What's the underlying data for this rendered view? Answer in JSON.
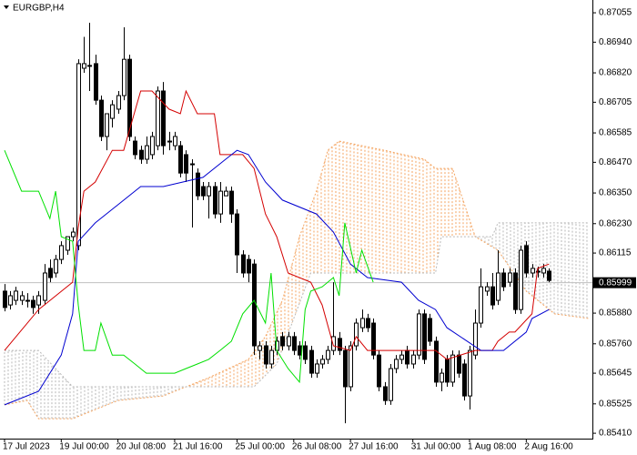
{
  "chart_data": {
    "type": "candlestick",
    "title": "EURGBP,H4",
    "xlim": [
      -0.8,
      103.5
    ],
    "ylim": [
      0.85389,
      0.87105
    ],
    "yticks": [
      0.87055,
      {
        "value": 0.8694,
        "label": "0.86940"
      },
      {
        "value": 0.8682,
        "label": "0.86820"
      },
      0.86705,
      0.86585,
      {
        "value": 0.8647,
        "label": "0.86470"
      },
      {
        "value": 0.8635,
        "label": "0.86350"
      },
      {
        "value": 0.8623,
        "label": "0.86230"
      },
      0.86115,
      {
        "value": 0.8588,
        "label": "0.85880"
      },
      {
        "value": 0.8576,
        "label": "0.85760"
      },
      0.85645,
      0.85525,
      {
        "value": 0.8541,
        "label": "0.85410"
      }
    ],
    "xticks": [
      {
        "value": 0,
        "label": "17 Jul 2023"
      },
      {
        "value": 10,
        "label": "19 Jul 00:00"
      },
      {
        "value": 20,
        "label": "20 Jul 08:00"
      },
      {
        "value": 30,
        "label": "21 Jul 16:00"
      },
      {
        "value": 41,
        "label": "25 Jul 00:00"
      },
      {
        "value": 51,
        "label": "26 Jul 08:00"
      },
      {
        "value": 61,
        "label": "27 Jul 16:00"
      },
      {
        "value": 72,
        "label": "31 Jul 00:00"
      },
      {
        "value": 82,
        "label": "1 Aug 08:00"
      },
      {
        "value": 92,
        "label": "2 Aug 16:00"
      }
    ],
    "current_price": 0.85999,
    "up_color": "#ffffff",
    "down_color": "#000000",
    "ohlc": [
      [
        0.85966,
        0.85994,
        0.85887,
        0.85902
      ],
      [
        0.85912,
        0.85966,
        0.85894,
        0.85948
      ],
      [
        0.8593,
        0.85983,
        0.85912,
        0.85966
      ],
      [
        0.8593,
        0.85966,
        0.85912,
        0.85948
      ],
      [
        0.8593,
        0.85958,
        0.85902,
        0.8593
      ],
      [
        0.8593,
        0.85948,
        0.85877,
        0.85902
      ],
      [
        0.85912,
        0.85966,
        0.85877,
        0.85948
      ],
      [
        0.8593,
        0.86072,
        0.85912,
        0.86037
      ],
      [
        0.86055,
        0.8609,
        0.86001,
        0.86019
      ],
      [
        0.86037,
        0.86108,
        0.86019,
        0.8609
      ],
      [
        0.8609,
        0.86161,
        0.86072,
        0.86144
      ],
      [
        0.86126,
        0.86179,
        0.86108,
        0.86179
      ],
      [
        0.86179,
        0.86215,
        0.86161,
        0.86197
      ],
      [
        0.86144,
        0.86873,
        0.86126,
        0.86856
      ],
      [
        0.86838,
        0.86961,
        0.8682,
        0.86856
      ],
      [
        0.86849,
        0.87016,
        0.86749,
        0.86849
      ],
      [
        0.86856,
        0.86891,
        0.86695,
        0.86713
      ],
      [
        0.86713,
        0.86731,
        0.86553,
        0.86571
      ],
      [
        0.86571,
        0.8666,
        0.86517,
        0.8666
      ],
      [
        0.86642,
        0.86713,
        0.86606,
        0.86695
      ],
      [
        0.86678,
        0.86749,
        0.8666,
        0.86731
      ],
      [
        0.86731,
        0.86998,
        0.86713,
        0.86873
      ],
      [
        0.86873,
        0.86891,
        0.86553,
        0.86571
      ],
      [
        0.86553,
        0.86571,
        0.86482,
        0.865
      ],
      [
        0.86517,
        0.86535,
        0.86464,
        0.86482
      ],
      [
        0.86482,
        0.86571,
        0.86464,
        0.86535
      ],
      [
        0.865,
        0.86589,
        0.86482,
        0.86571
      ],
      [
        0.86535,
        0.86767,
        0.86517,
        0.86749
      ],
      [
        0.86749,
        0.86784,
        0.865,
        0.86535
      ],
      [
        0.86553,
        0.86589,
        0.86517,
        0.86553
      ],
      [
        0.86535,
        0.86589,
        0.86517,
        0.86571
      ],
      [
        0.86535,
        0.86553,
        0.86411,
        0.86428
      ],
      [
        0.865,
        0.86517,
        0.86393,
        0.86428
      ],
      [
        0.86464,
        0.86482,
        0.86215,
        0.86464
      ],
      [
        0.86428,
        0.86446,
        0.86322,
        0.86339
      ],
      [
        0.86375,
        0.86393,
        0.86322,
        0.86339
      ],
      [
        0.86339,
        0.86393,
        0.8625,
        0.86375
      ],
      [
        0.86375,
        0.86393,
        0.8625,
        0.86268
      ],
      [
        0.86268,
        0.86393,
        0.86233,
        0.86357
      ],
      [
        0.86339,
        0.86375,
        0.86339,
        0.86357
      ],
      [
        0.86357,
        0.86375,
        0.86233,
        0.86268
      ],
      [
        0.86268,
        0.86286,
        0.86037,
        0.86108
      ],
      [
        0.86108,
        0.86126,
        0.86019,
        0.86037
      ],
      [
        0.8609,
        0.86108,
        0.86001,
        0.86037
      ],
      [
        0.86072,
        0.8609,
        0.85716,
        0.85752
      ],
      [
        0.85734,
        0.8577,
        0.85699,
        0.85752
      ],
      [
        0.85752,
        0.8577,
        0.85663,
        0.85681
      ],
      [
        0.85681,
        0.85752,
        0.85663,
        0.85734
      ],
      [
        0.85734,
        0.85788,
        0.85716,
        0.8577
      ],
      [
        0.85788,
        0.85806,
        0.85734,
        0.85752
      ],
      [
        0.85752,
        0.85806,
        0.85734,
        0.85788
      ],
      [
        0.85788,
        0.85806,
        0.85716,
        0.85734
      ],
      [
        0.85752,
        0.8577,
        0.85699,
        0.85716
      ],
      [
        0.85752,
        0.8577,
        0.85681,
        0.85699
      ],
      [
        0.85734,
        0.85752,
        0.85627,
        0.85645
      ],
      [
        0.85645,
        0.85699,
        0.85627,
        0.85681
      ],
      [
        0.85681,
        0.85716,
        0.85663,
        0.85699
      ],
      [
        0.85699,
        0.85752,
        0.85681,
        0.85734
      ],
      [
        0.85734,
        0.86001,
        0.85716,
        0.85788
      ],
      [
        0.85781,
        0.85806,
        0.85716,
        0.85734
      ],
      [
        0.85734,
        0.85752,
        0.85449,
        0.85592
      ],
      [
        0.85592,
        0.8577,
        0.85574,
        0.85752
      ],
      [
        0.85752,
        0.85859,
        0.85734,
        0.85841
      ],
      [
        0.85823,
        0.85894,
        0.85806,
        0.85859
      ],
      [
        0.85859,
        0.85877,
        0.85806,
        0.85823
      ],
      [
        0.85841,
        0.85859,
        0.85699,
        0.85716
      ],
      [
        0.85716,
        0.85734,
        0.85574,
        0.85592
      ],
      [
        0.85592,
        0.8561,
        0.85521,
        0.85538
      ],
      [
        0.85538,
        0.85681,
        0.85521,
        0.85663
      ],
      [
        0.85663,
        0.85716,
        0.85645,
        0.85699
      ],
      [
        0.85699,
        0.85734,
        0.85681,
        0.85716
      ],
      [
        0.85734,
        0.85752,
        0.85663,
        0.85681
      ],
      [
        0.85681,
        0.85734,
        0.85663,
        0.85716
      ],
      [
        0.85716,
        0.85894,
        0.85699,
        0.85877
      ],
      [
        0.85877,
        0.85894,
        0.85681,
        0.85699
      ],
      [
        0.85859,
        0.85877,
        0.85752,
        0.8577
      ],
      [
        0.8577,
        0.85788,
        0.85592,
        0.8561
      ],
      [
        0.8561,
        0.85663,
        0.85574,
        0.85645
      ],
      [
        0.85699,
        0.85716,
        0.85592,
        0.8561
      ],
      [
        0.8561,
        0.85734,
        0.85592,
        0.85716
      ],
      [
        0.85716,
        0.85734,
        0.85627,
        0.85645
      ],
      [
        0.85681,
        0.85699,
        0.85538,
        0.85556
      ],
      [
        0.85556,
        0.85752,
        0.85503,
        0.85734
      ],
      [
        0.85716,
        0.85894,
        0.85699,
        0.85841
      ],
      [
        0.85841,
        0.86055,
        0.85823,
        0.85983
      ],
      [
        0.85966,
        0.86001,
        0.85948,
        0.85983
      ],
      [
        0.85983,
        0.86037,
        0.85894,
        0.85912
      ],
      [
        0.8593,
        0.86126,
        0.85912,
        0.86037
      ],
      [
        0.86037,
        0.86055,
        0.85966,
        0.85983
      ],
      [
        0.86001,
        0.86055,
        0.85983,
        0.86037
      ],
      [
        0.86037,
        0.86055,
        0.85877,
        0.85894
      ],
      [
        0.85894,
        0.86144,
        0.85877,
        0.86126
      ],
      [
        0.86144,
        0.86161,
        0.86019,
        0.86037
      ],
      [
        0.86037,
        0.86072,
        0.86019,
        0.86055
      ],
      [
        0.86044,
        0.86062,
        0.86019,
        0.86044
      ],
      [
        0.86037,
        0.86072,
        0.86019,
        0.86055
      ],
      [
        0.86044,
        0.86055,
        0.86001,
        0.86008
      ]
    ],
    "lines": [
      {
        "color": "#d40000",
        "style": "solid",
        "x": [
          0,
          6,
          12,
          13,
          14,
          16,
          19,
          21,
          24,
          26,
          29,
          31,
          32,
          34,
          37,
          38,
          42,
          44,
          46,
          48,
          50,
          54,
          56,
          58,
          61,
          62,
          64,
          76,
          78,
          83,
          86,
          87,
          89,
          90,
          93,
          94,
          96
        ],
        "values": [
          0.85734,
          0.85894,
          0.86001,
          0.86215,
          0.86357,
          0.86393,
          0.86517,
          0.86517,
          0.86749,
          0.86749,
          0.86678,
          0.8666,
          0.86749,
          0.8666,
          0.8666,
          0.865,
          0.865,
          0.86446,
          0.86268,
          0.86179,
          0.86037,
          0.86001,
          0.85912,
          0.85752,
          0.85734,
          0.85788,
          0.85734,
          0.85734,
          0.85699,
          0.85734,
          0.85734,
          0.8577,
          0.85806,
          0.85806,
          0.85877,
          0.86055,
          0.86072
        ]
      },
      {
        "color": "#0000d0",
        "style": "solid",
        "x": [
          0,
          6,
          10,
          12,
          13,
          16,
          20,
          24,
          28,
          35,
          39,
          41,
          43,
          46,
          49,
          55,
          58,
          61,
          64,
          70,
          73,
          76,
          78,
          84,
          88,
          92,
          93,
          96
        ],
        "values": [
          0.85521,
          0.85574,
          0.85716,
          0.85877,
          0.86161,
          0.86233,
          0.86304,
          0.86375,
          0.86375,
          0.86411,
          0.86482,
          0.86517,
          0.865,
          0.86393,
          0.86322,
          0.86268,
          0.86197,
          0.86072,
          0.86019,
          0.86001,
          0.8593,
          0.85894,
          0.85823,
          0.85734,
          0.85734,
          0.85806,
          0.85859,
          0.85894
        ]
      },
      {
        "color": "#00e000",
        "style": "solid",
        "x": [
          0,
          3,
          6,
          8,
          9,
          10,
          12,
          13,
          14,
          16,
          17,
          19,
          21,
          23,
          25,
          30,
          32,
          34,
          36,
          38,
          40,
          42,
          44,
          46,
          47,
          48,
          50,
          52,
          53,
          54,
          56,
          58,
          59,
          60,
          62,
          63,
          65
        ],
        "values": [
          0.86517,
          0.86357,
          0.86357,
          0.8625,
          0.86357,
          0.86179,
          0.86161,
          0.85912,
          0.85734,
          0.85734,
          0.85841,
          0.85716,
          0.85716,
          0.85681,
          0.85645,
          0.85645,
          0.85663,
          0.85681,
          0.85699,
          0.85734,
          0.8577,
          0.85877,
          0.8593,
          0.85841,
          0.86037,
          0.85734,
          0.85663,
          0.8561,
          0.85894,
          0.85966,
          0.85983,
          0.86019,
          0.85948,
          0.86233,
          0.86037,
          0.86126,
          0.86001
        ]
      }
    ],
    "span_a": {
      "color": "#f4a460",
      "style": "dotted",
      "x": [
        0,
        4,
        6,
        12,
        20,
        28,
        36,
        43,
        46,
        49,
        52,
        55,
        57,
        59,
        67,
        74,
        76,
        79,
        83,
        87,
        92,
        97,
        103
      ],
      "values": [
        0.85521,
        0.85538,
        0.85467,
        0.85467,
        0.85538,
        0.85556,
        0.85627,
        0.85699,
        0.85788,
        0.8593,
        0.86179,
        0.86357,
        0.86517,
        0.86553,
        0.86517,
        0.86482,
        0.86446,
        0.86446,
        0.86179,
        0.86126,
        0.85966,
        0.85877,
        0.85859
      ]
    },
    "span_b": {
      "color": "#b8b8b8",
      "style": "dotted",
      "x": [
        0,
        6,
        12,
        44,
        48,
        54,
        76,
        77,
        86,
        87,
        103
      ],
      "values": [
        0.85734,
        0.85734,
        0.85592,
        0.85592,
        0.85681,
        0.86037,
        0.86037,
        0.86179,
        0.86179,
        0.86233,
        0.86233
      ]
    }
  }
}
